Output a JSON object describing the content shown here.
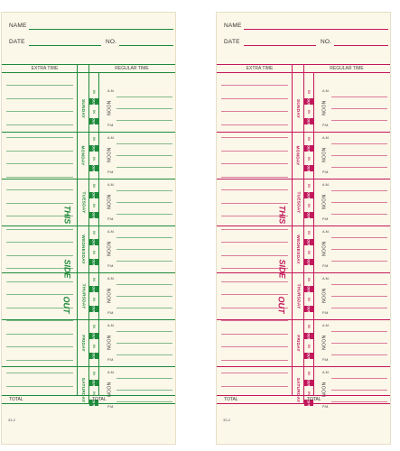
{
  "labels": {
    "name": "NAME",
    "date": "DATE",
    "no": "NO.",
    "extra_time": "EXTRA TIME",
    "regular_time": "REGULAR TIME",
    "in": "IN",
    "out": "OUT",
    "am": "A.M.",
    "pm": "P.M.",
    "noon": "NOON",
    "total": "TOTAL",
    "form_number": "33-2"
  },
  "side_text": [
    "THIS",
    "SIDE",
    "OUT"
  ],
  "days": [
    "SUNDAY",
    "MONDAY",
    "TUESDAY",
    "WEDNESDAY",
    "THURSDAY",
    "FRIDAY",
    "SATURDAY"
  ],
  "cards": [
    {
      "variant": "green",
      "ink_color": "#1f8a3b"
    },
    {
      "variant": "red",
      "ink_color": "#c2185b"
    }
  ]
}
